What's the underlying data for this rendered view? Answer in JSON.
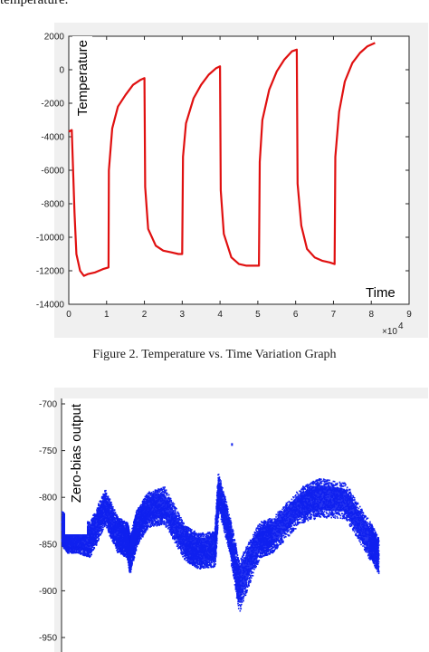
{
  "header": {
    "text": "temperature."
  },
  "chart_data": [
    {
      "type": "line",
      "ylabel": "Temperature",
      "xlabel": "Time",
      "x_multiplier": "×10",
      "x_exponent": "4",
      "xlim": [
        0,
        9
      ],
      "ylim": [
        -14000,
        2000
      ],
      "xticks": [
        "0",
        "1",
        "2",
        "3",
        "4",
        "5",
        "6",
        "7",
        "8",
        "9"
      ],
      "yticks": [
        "2000",
        "0",
        "-2000",
        "-4000",
        "-6000",
        "-8000",
        "-10000",
        "-12000",
        "-14000"
      ],
      "color": "#e01010",
      "x": [
        0,
        0.08,
        0.15,
        0.2,
        0.3,
        0.4,
        0.5,
        0.7,
        0.9,
        1.05,
        1.06,
        1.15,
        1.3,
        1.5,
        1.7,
        1.9,
        2.0,
        2.02,
        2.1,
        2.3,
        2.5,
        2.7,
        2.9,
        3.0,
        3.02,
        3.1,
        3.3,
        3.5,
        3.7,
        3.9,
        4.0,
        4.02,
        4.1,
        4.3,
        4.5,
        4.7,
        4.9,
        5.03,
        5.05,
        5.12,
        5.3,
        5.5,
        5.7,
        5.9,
        6.03,
        6.05,
        6.15,
        6.3,
        6.5,
        6.7,
        6.9,
        7.03,
        7.05,
        7.15,
        7.3,
        7.5,
        7.7,
        7.9,
        8.1
      ],
      "y": [
        -3700,
        -3600,
        -8500,
        -11000,
        -12000,
        -12300,
        -12200,
        -12100,
        -11900,
        -11800,
        -6000,
        -3500,
        -2200,
        -1500,
        -900,
        -600,
        -500,
        -7000,
        -9500,
        -10500,
        -10800,
        -10900,
        -11000,
        -11000,
        -5200,
        -3200,
        -1700,
        -900,
        -300,
        100,
        200,
        -7200,
        -9800,
        -11200,
        -11600,
        -11700,
        -11700,
        -11700,
        -5500,
        -3000,
        -1200,
        -100,
        600,
        1100,
        1200,
        -6800,
        -9300,
        -10700,
        -11200,
        -11400,
        -11500,
        -11600,
        -5200,
        -2500,
        -700,
        400,
        1000,
        1400,
        1600
      ],
      "grid": false
    },
    {
      "type": "scatter",
      "ylabel": "Zero-bias output",
      "ylim": [
        -960,
        -700
      ],
      "yticks": [
        "-700",
        "-750",
        "-800",
        "-850",
        "-900",
        "-950"
      ],
      "color": "#1020ee",
      "x": [
        0.0,
        0.3,
        0.8,
        1.5,
        2.3,
        3.0,
        3.5,
        3.65,
        4.0,
        4.6,
        5.5,
        6.6,
        7.3,
        8.2,
        8.4,
        9.0,
        9.5,
        10.6,
        11.3,
        12.8,
        13.8,
        15.2,
        16.5,
        17.0
      ],
      "y": [
        -832,
        -840,
        -840,
        -845,
        -810,
        -840,
        -845,
        -862,
        -832,
        -813,
        -808,
        -848,
        -857,
        -855,
        -792,
        -840,
        -895,
        -845,
        -840,
        -808,
        -800,
        -803,
        -845,
        -862
      ],
      "band": [
        38,
        38,
        38,
        38,
        38,
        38,
        38,
        38,
        38,
        38,
        40,
        38,
        38,
        38,
        38,
        38,
        55,
        38,
        38,
        38,
        42,
        38,
        40,
        38
      ],
      "grid": false
    }
  ],
  "caption": "Figure 2. Temperature vs. Time Variation Graph"
}
